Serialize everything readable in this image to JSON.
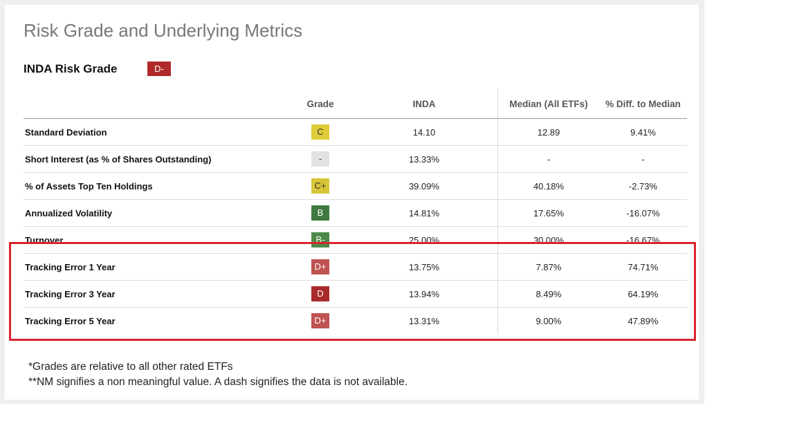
{
  "title": "Risk Grade and Underlying Metrics",
  "risk_grade": {
    "label": "INDA Risk Grade",
    "value": "D-",
    "color": "#b02a2a"
  },
  "table": {
    "headers": [
      "",
      "Grade",
      "INDA",
      "Median (All ETFs)",
      "% Diff. to Median"
    ],
    "rows": [
      {
        "metric": "Standard Deviation",
        "grade": "C",
        "grade_color": "#e0cc3a",
        "inda": "14.10",
        "median": "12.89",
        "diff": "9.41%"
      },
      {
        "metric": "Short Interest (as % of Shares Outstanding)",
        "grade": "-",
        "grade_color": "#e2e2e2",
        "inda": "13.33%",
        "median": "-",
        "diff": "-"
      },
      {
        "metric": "% of Assets Top Ten Holdings",
        "grade": "C+",
        "grade_color": "#d8c537",
        "inda": "39.09%",
        "median": "40.18%",
        "diff": "-2.73%"
      },
      {
        "metric": "Annualized Volatility",
        "grade": "B",
        "grade_color": "#3f7a3f",
        "inda": "14.81%",
        "median": "17.65%",
        "diff": "-16.07%"
      },
      {
        "metric": "Turnover",
        "grade": "B-",
        "grade_color": "#4d8a4a",
        "inda": "25.00%",
        "median": "30.00%",
        "diff": "-16.67%"
      },
      {
        "metric": "Tracking Error 1 Year",
        "grade": "D+",
        "grade_color": "#c05252",
        "inda": "13.75%",
        "median": "7.87%",
        "diff": "74.71%"
      },
      {
        "metric": "Tracking Error 3 Year",
        "grade": "D",
        "grade_color": "#aa2a2a",
        "inda": "13.94%",
        "median": "8.49%",
        "diff": "64.19%"
      },
      {
        "metric": "Tracking Error 5 Year",
        "grade": "D+",
        "grade_color": "#c05252",
        "inda": "13.31%",
        "median": "9.00%",
        "diff": "47.89%"
      }
    ]
  },
  "highlight_color": "#d9242e",
  "notes": [
    "*Grades are relative to all other rated ETFs",
    "**NM signifies a non meaningful value. A dash signifies the data is not available."
  ]
}
